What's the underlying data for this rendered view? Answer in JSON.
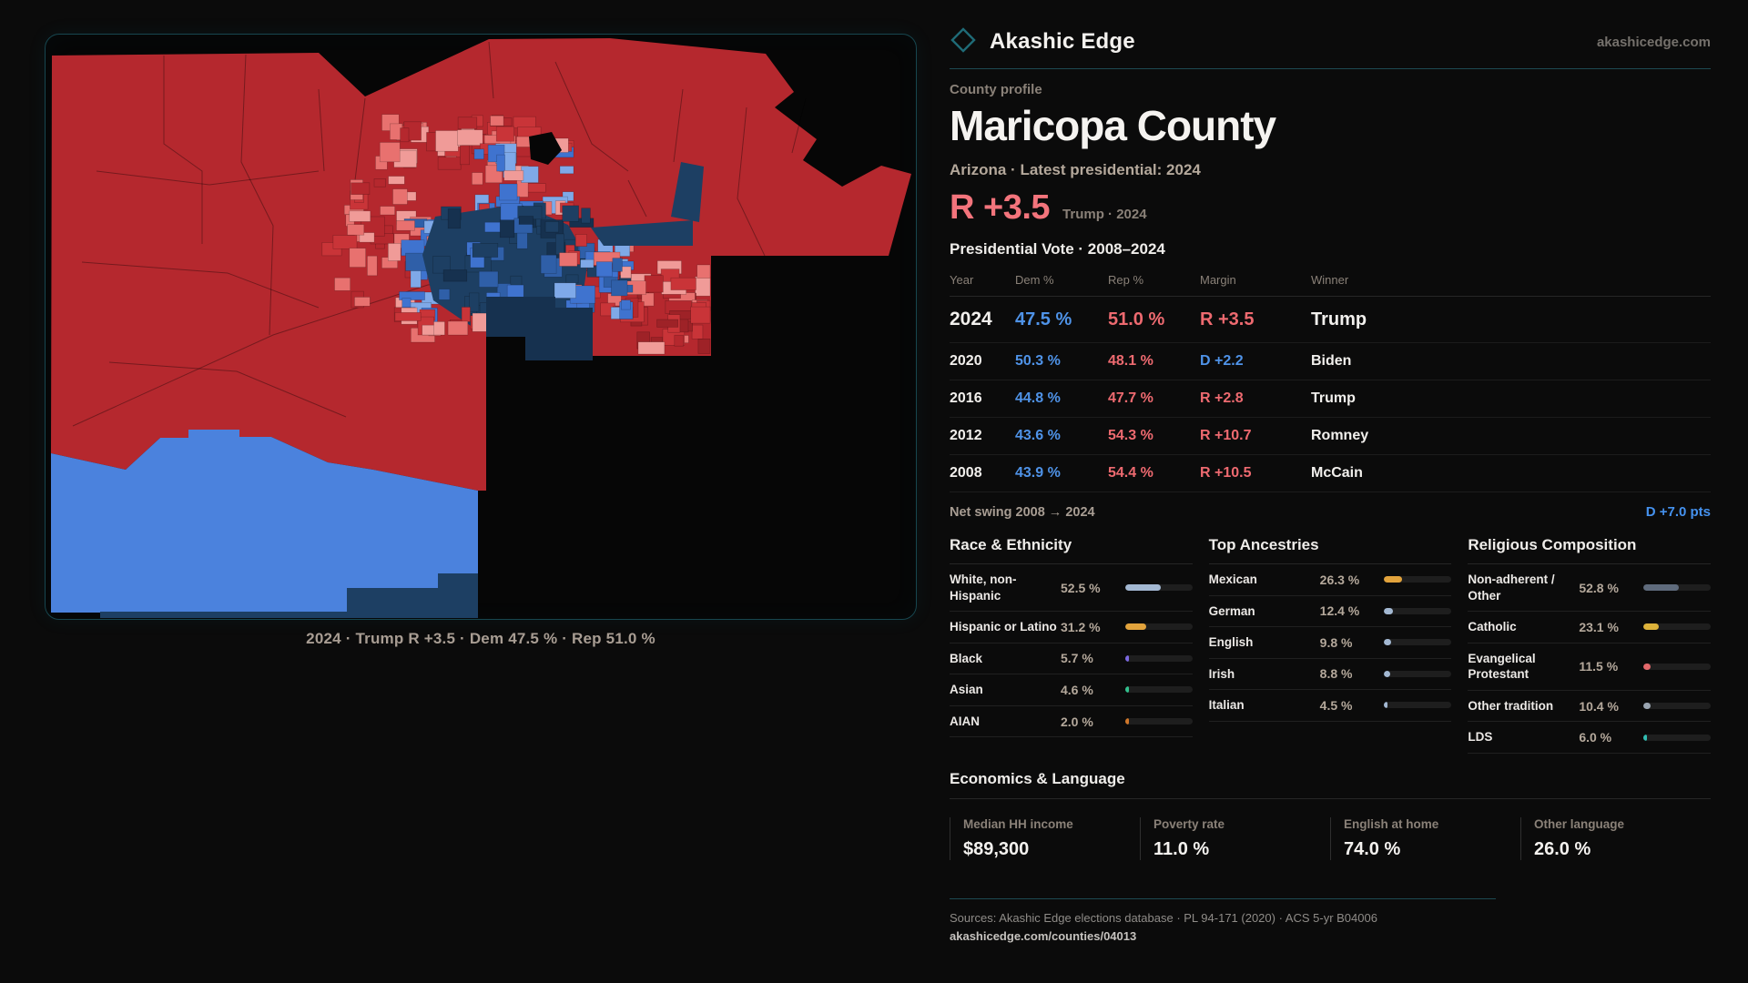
{
  "brand": {
    "name": "Akashic Edge",
    "domain": "akashicedge.com"
  },
  "profile": {
    "kicker": "County profile",
    "title": "Maricopa County",
    "subtitle": "Arizona · Latest presidential: 2024"
  },
  "headline": {
    "margin": "R +3.5",
    "context": "Trump · 2024"
  },
  "table": {
    "title": "Presidential Vote · 2008–2024",
    "columns": [
      "Year",
      "Dem %",
      "Rep %",
      "Margin",
      "Winner"
    ],
    "rows": [
      {
        "year": "2024",
        "dem": "47.5 %",
        "rep": "51.0 %",
        "margin": "R +3.5",
        "margin_party": "R",
        "winner": "Trump",
        "emphasis": true
      },
      {
        "year": "2020",
        "dem": "50.3 %",
        "rep": "48.1 %",
        "margin": "D +2.2",
        "margin_party": "D",
        "winner": "Biden",
        "emphasis": false
      },
      {
        "year": "2016",
        "dem": "44.8 %",
        "rep": "47.7 %",
        "margin": "R +2.8",
        "margin_party": "R",
        "winner": "Trump",
        "emphasis": false
      },
      {
        "year": "2012",
        "dem": "43.6 %",
        "rep": "54.3 %",
        "margin": "R +10.7",
        "margin_party": "R",
        "winner": "Romney",
        "emphasis": false
      },
      {
        "year": "2008",
        "dem": "43.9 %",
        "rep": "54.4 %",
        "margin": "R +10.5",
        "margin_party": "R",
        "winner": "McCain",
        "emphasis": false
      }
    ]
  },
  "net_swing": {
    "label": "Net swing 2008 → 2024",
    "value": "D +7.0 pts"
  },
  "demographics": [
    {
      "title": "Race & Ethnicity",
      "rows": [
        {
          "label": "White, non-Hispanic",
          "value": "52.5 %",
          "pct": 52.5,
          "color": "#a3b8d2"
        },
        {
          "label": "Hispanic or Latino",
          "value": "31.2 %",
          "pct": 31.2,
          "color": "#e2a33c"
        },
        {
          "label": "Black",
          "value": "5.7 %",
          "pct": 5.7,
          "color": "#7b68e0"
        },
        {
          "label": "Asian",
          "value": "4.6 %",
          "pct": 4.6,
          "color": "#32c08d"
        },
        {
          "label": "AIAN",
          "value": "2.0 %",
          "pct": 2.0,
          "color": "#d0772a"
        }
      ]
    },
    {
      "title": "Top Ancestries",
      "rows": [
        {
          "label": "Mexican",
          "value": "26.3 %",
          "pct": 26.3,
          "color": "#e2a33c"
        },
        {
          "label": "German",
          "value": "12.4 %",
          "pct": 12.4,
          "color": "#a3b8d2"
        },
        {
          "label": "English",
          "value": "9.8 %",
          "pct": 9.8,
          "color": "#a3b8d2"
        },
        {
          "label": "Irish",
          "value": "8.8 %",
          "pct": 8.8,
          "color": "#a3b8d2"
        },
        {
          "label": "Italian",
          "value": "4.5 %",
          "pct": 4.5,
          "color": "#a3b8d2"
        }
      ]
    },
    {
      "title": "Religious Composition",
      "rows": [
        {
          "label": "Non-adherent / Other",
          "value": "52.8 %",
          "pct": 52.8,
          "color": "#5f6b7c"
        },
        {
          "label": "Catholic",
          "value": "23.1 %",
          "pct": 23.1,
          "color": "#ddb23a"
        },
        {
          "label": "Evangelical Protestant",
          "value": "11.5 %",
          "pct": 11.5,
          "color": "#e2686a"
        },
        {
          "label": "Other tradition",
          "value": "10.4 %",
          "pct": 10.4,
          "color": "#9aa5b1"
        },
        {
          "label": "LDS",
          "value": "6.0 %",
          "pct": 6.0,
          "color": "#32bdb2"
        }
      ]
    }
  ],
  "economics": {
    "title": "Economics & Language",
    "stats": [
      {
        "label": "Median HH income",
        "value": "$89,300"
      },
      {
        "label": "Poverty rate",
        "value": "11.0 %"
      },
      {
        "label": "English at home",
        "value": "74.0 %"
      },
      {
        "label": "Other language",
        "value": "26.0 %"
      }
    ]
  },
  "sources": {
    "line1": "Sources: Akashic Edge elections database · PL 94-171 (2020) · ACS 5-yr B04006",
    "line2": "akashicedge.com/counties/04013"
  },
  "map": {
    "caption": "2024 · Trump R +3.5 · Dem 47.5 % · Rep 51.0 %"
  },
  "theme": {
    "bg": "#0b0b0b",
    "card-bg": "#060606",
    "teal-border": "#17464f",
    "teal-line": "#1d4a52",
    "white": "#f3f1ee",
    "warm": "#a89d93",
    "warm-dim": "#8a8178",
    "tan": "#b4a89b",
    "dim": "#75716c",
    "dem": "#4f93e8",
    "dem-bright": "#4592ef",
    "rep": "#ee6a70",
    "rep-bright": "#f3747c",
    "m-red": "#b5282e",
    "m-red-dark": "#9e2227",
    "m-red-mid": "#c93438",
    "m-salmon": "#e8716f",
    "m-salmon-light": "#f09b98",
    "m-blue-strong": "#4b82dd",
    "m-blue-med": "#3f73cf",
    "m-blue-light": "#7fa9e8",
    "m-blue-deep": "#2f5fa8",
    "m-navy": "#1d3f63",
    "m-navy-dark": "#16314f"
  }
}
